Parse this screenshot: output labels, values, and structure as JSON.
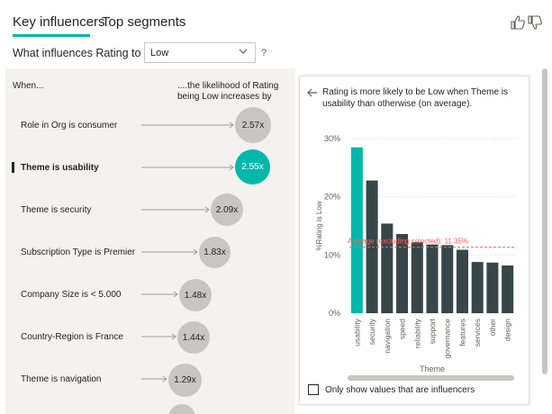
{
  "tabs": [
    {
      "label": "Key influencers",
      "active": true
    },
    {
      "label": "Top segments",
      "active": false
    }
  ],
  "question": {
    "prefix": "What influences Rating to be",
    "selected_value": "Low",
    "help": "?"
  },
  "icons": {
    "thumbs_up": "thumbs-up-icon",
    "thumbs_down": "thumbs-down-icon",
    "back": "arrow-left-icon",
    "dropdown": "chevron-down-icon"
  },
  "colors": {
    "accent": "#01b8aa",
    "bar_default": "#374649",
    "bubble_default": "#c8c6c4",
    "average_line": "#fd625e"
  },
  "influencers": {
    "col_when": "When...",
    "col_likelihood": "....the likelihood of Rating being Low increases by",
    "rows": [
      {
        "label": "Role in Org is consumer",
        "value": "2.57x",
        "selected": false
      },
      {
        "label": "Theme is usability",
        "value": "2.55x",
        "selected": true
      },
      {
        "label": "Theme is security",
        "value": "2.09x",
        "selected": false
      },
      {
        "label": "Subscription Type is Premier",
        "value": "1.83x",
        "selected": false
      },
      {
        "label": "Company Size is < 5.000",
        "value": "1.48x",
        "selected": false
      },
      {
        "label": "Country-Region is France",
        "value": "1.44x",
        "selected": false
      },
      {
        "label": "Theme is navigation",
        "value": "1.29x",
        "selected": false
      }
    ]
  },
  "detail": {
    "title": "Rating is more likely to be Low when Theme is usability than otherwise (on average).",
    "checkbox_label": "Only show values that are influencers",
    "checkbox_checked": false
  },
  "chart_data": {
    "type": "bar",
    "categories": [
      "usability",
      "security",
      "navigation",
      "speed",
      "reliability",
      "support",
      "governance",
      "features",
      "services",
      "other",
      "design"
    ],
    "values": [
      28.5,
      22.8,
      15.4,
      13.6,
      12.2,
      11.8,
      11.7,
      10.9,
      8.8,
      8.7,
      8.2
    ],
    "highlighted": [
      "usability"
    ],
    "xlabel": "Theme",
    "ylabel": "%Rating is Low",
    "ylim": [
      0,
      30
    ],
    "yticks": [
      "0%",
      "10%",
      "20%",
      "30%"
    ],
    "grid": true,
    "average": {
      "value": 11.35,
      "label": "Average (excluding selected): 11.35%"
    }
  }
}
